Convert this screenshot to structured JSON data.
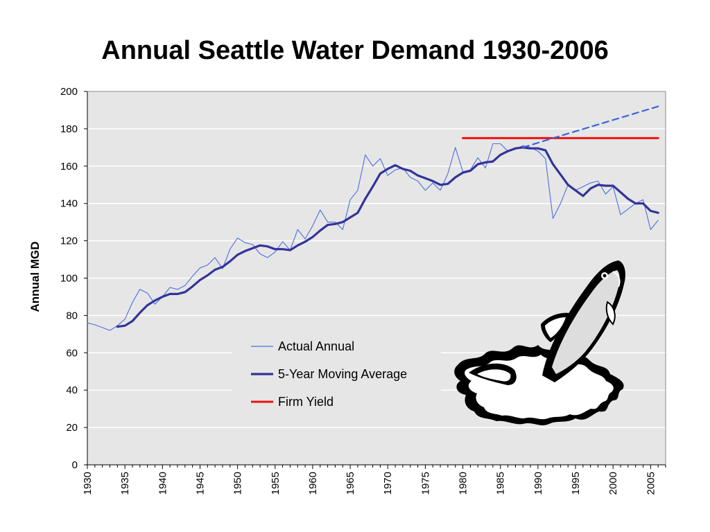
{
  "slide": {
    "title": "Annual Seattle Water Demand 1930-2006"
  },
  "colors": {
    "plot_background": "#e6e6e6",
    "gridline": "#ffffff",
    "actual": "#4a6fe0",
    "moving_average": "#333399",
    "firm_yield": "#ee1111",
    "projection": "#3a64d8"
  },
  "illustration": {
    "icon": "leaping-salmon-icon"
  },
  "chart_data": {
    "type": "line",
    "title": "Annual Seattle Water Demand 1930-2006",
    "xlabel": "",
    "ylabel": "Annual MGD",
    "xlim": [
      1930,
      2007
    ],
    "ylim": [
      0,
      200
    ],
    "x_ticks": [
      "1930",
      "1935",
      "1940",
      "1945",
      "1950",
      "1955",
      "1960",
      "1965",
      "1970",
      "1975",
      "1980",
      "1985",
      "1990",
      "1995",
      "2000",
      "2005"
    ],
    "y_ticks": [
      "0",
      "20",
      "40",
      "60",
      "80",
      "100",
      "120",
      "140",
      "160",
      "180",
      "200"
    ],
    "grid": true,
    "legend": "center",
    "legend_entries": [
      "Actual Annual",
      "5-Year Moving Average",
      "Firm Yield"
    ],
    "series": [
      {
        "name": "Actual Annual",
        "x": [
          1930,
          1931,
          1932,
          1933,
          1934,
          1935,
          1936,
          1937,
          1938,
          1939,
          1940,
          1941,
          1942,
          1943,
          1944,
          1945,
          1946,
          1947,
          1948,
          1949,
          1950,
          1951,
          1952,
          1953,
          1954,
          1955,
          1956,
          1957,
          1958,
          1959,
          1960,
          1961,
          1962,
          1963,
          1964,
          1965,
          1966,
          1967,
          1968,
          1969,
          1970,
          1971,
          1972,
          1973,
          1974,
          1975,
          1976,
          1977,
          1978,
          1979,
          1980,
          1981,
          1982,
          1983,
          1984,
          1985,
          1986,
          1987,
          1988,
          1989,
          1990,
          1991,
          1992,
          1993,
          1994,
          1995,
          1996,
          1997,
          1998,
          1999,
          2000,
          2001,
          2002,
          2003,
          2004,
          2005,
          2006
        ],
        "y": [
          76,
          75,
          73.5,
          72,
          74.5,
          78,
          87,
          94,
          92,
          86,
          90,
          95,
          94,
          96,
          101,
          105.5,
          107,
          111,
          105,
          115.5,
          121.5,
          119,
          118,
          113,
          111,
          114,
          119.5,
          115,
          126,
          121,
          128,
          136.5,
          130,
          130,
          126,
          142,
          147,
          166,
          160,
          164,
          155,
          158,
          159,
          154,
          152,
          147,
          151,
          147,
          156,
          170,
          157,
          158,
          164.5,
          159,
          172,
          172,
          168,
          169,
          171,
          170,
          168,
          164,
          132,
          140,
          150,
          147,
          149,
          151,
          152,
          145,
          149,
          134,
          137,
          140,
          142,
          126,
          131
        ]
      },
      {
        "name": "5-Year Moving Average",
        "x": [
          1934,
          1935,
          1936,
          1937,
          1938,
          1939,
          1940,
          1941,
          1942,
          1943,
          1944,
          1945,
          1946,
          1947,
          1948,
          1949,
          1950,
          1951,
          1952,
          1953,
          1954,
          1955,
          1956,
          1957,
          1958,
          1959,
          1960,
          1961,
          1962,
          1963,
          1964,
          1965,
          1966,
          1967,
          1968,
          1969,
          1970,
          1971,
          1972,
          1973,
          1974,
          1975,
          1976,
          1977,
          1978,
          1979,
          1980,
          1981,
          1982,
          1983,
          1984,
          1985,
          1986,
          1987,
          1988,
          1989,
          1990,
          1991,
          1992,
          1993,
          1994,
          1995,
          1996,
          1997,
          1998,
          1999,
          2000,
          2001,
          2002,
          2003,
          2004,
          2005,
          2006
        ],
        "y": [
          74,
          74.5,
          77,
          81.5,
          85.5,
          88,
          90,
          91.5,
          91.5,
          92.5,
          95.5,
          99,
          101.5,
          104.5,
          106,
          109,
          112.5,
          114.5,
          116,
          117.5,
          117,
          115.5,
          115.5,
          115,
          117.5,
          119.5,
          122,
          125.5,
          128.5,
          129,
          130,
          132.5,
          135,
          142.5,
          149,
          156,
          158.5,
          160.5,
          158.5,
          157.5,
          155,
          153.5,
          152,
          150,
          150.5,
          154,
          156.5,
          157.5,
          161,
          162,
          162.5,
          166,
          168,
          169.5,
          170,
          169.5,
          169.5,
          168.5,
          161,
          155.5,
          150,
          147,
          144,
          148,
          150,
          149.5,
          149.5,
          146,
          142.5,
          140,
          140,
          136,
          135
        ]
      },
      {
        "name": "Firm Yield",
        "x": [
          1980,
          2006
        ],
        "y": [
          175,
          175
        ]
      },
      {
        "name": "",
        "style": "dashed",
        "x": [
          1988,
          1992,
          2006
        ],
        "y": [
          170,
          175,
          192
        ]
      }
    ]
  }
}
